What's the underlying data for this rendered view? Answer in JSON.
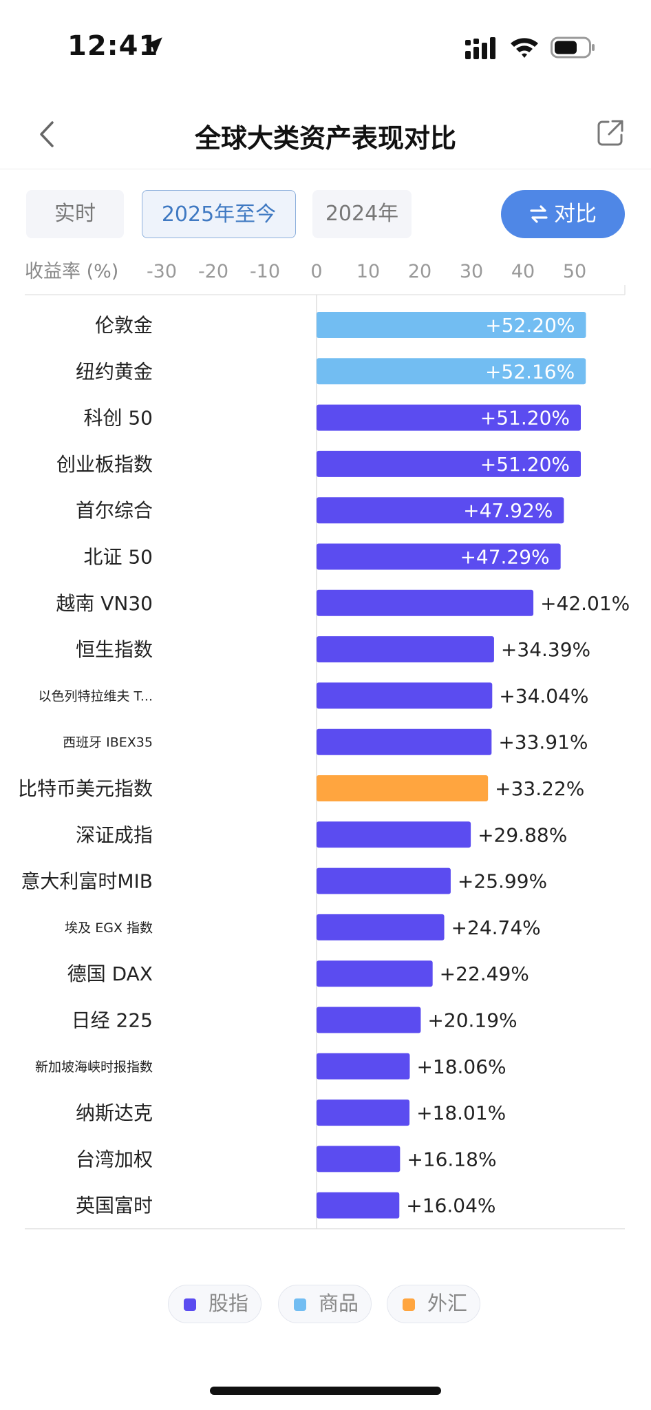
{
  "status_bar": {
    "time": "12:41",
    "icons": [
      "location-arrow-icon",
      "cellular-signal-icon",
      "wifi-icon",
      "battery-icon"
    ]
  },
  "header": {
    "title": "全球大类资产表现对比",
    "back_icon": "chevron-left-icon",
    "share_icon": "share-external-icon"
  },
  "tabs": [
    {
      "label": "实时",
      "active": false
    },
    {
      "label": "2025年至今",
      "active": true
    },
    {
      "label": "2024年",
      "active": false
    }
  ],
  "compare_button": {
    "label": "对比",
    "icon": "swap-arrows-icon"
  },
  "colors": {
    "股指": "#5b4cf0",
    "商品": "#72bdf2",
    "外汇": "#ffa53f",
    "accent": "#4f87e6"
  },
  "chart_data": {
    "type": "bar",
    "orientation": "horizontal",
    "axis_title": "收益率 (%)",
    "xlim": [
      -30,
      50
    ],
    "ticks": [
      -30,
      -20,
      -10,
      0,
      10,
      20,
      30,
      40,
      50
    ],
    "tick_labels": [
      "-30",
      "-20",
      "-10",
      "0",
      "10",
      "20",
      "30",
      "40",
      "50"
    ],
    "legend": [
      {
        "name": "股指",
        "color": "#5b4cf0"
      },
      {
        "name": "商品",
        "color": "#72bdf2"
      },
      {
        "name": "外汇",
        "color": "#ffa53f"
      }
    ],
    "items": [
      {
        "name": "伦敦金",
        "value": 52.2,
        "label": "+52.20%",
        "category": "商品"
      },
      {
        "name": "纽约黄金",
        "value": 52.16,
        "label": "+52.16%",
        "category": "商品"
      },
      {
        "name": "科创 50",
        "value": 51.2,
        "label": "+51.20%",
        "category": "股指"
      },
      {
        "name": "创业板指数",
        "value": 51.2,
        "label": "+51.20%",
        "category": "股指"
      },
      {
        "name": "首尔综合",
        "value": 47.92,
        "label": "+47.92%",
        "category": "股指"
      },
      {
        "name": "北证 50",
        "value": 47.29,
        "label": "+47.29%",
        "category": "股指"
      },
      {
        "name": "越南 VN30",
        "value": 42.01,
        "label": "+42.01%",
        "category": "股指"
      },
      {
        "name": "恒生指数",
        "value": 34.39,
        "label": "+34.39%",
        "category": "股指"
      },
      {
        "name": "以色列特拉维夫 T...",
        "value": 34.04,
        "label": "+34.04%",
        "category": "股指"
      },
      {
        "name": "西班牙 IBEX35",
        "value": 33.91,
        "label": "+33.91%",
        "category": "股指"
      },
      {
        "name": "比特币美元指数",
        "value": 33.22,
        "label": "+33.22%",
        "category": "外汇"
      },
      {
        "name": "深证成指",
        "value": 29.88,
        "label": "+29.88%",
        "category": "股指"
      },
      {
        "name": "意大利富时MIB",
        "value": 25.99,
        "label": "+25.99%",
        "category": "股指"
      },
      {
        "name": "埃及 EGX 指数",
        "value": 24.74,
        "label": "+24.74%",
        "category": "股指"
      },
      {
        "name": "德国 DAX",
        "value": 22.49,
        "label": "+22.49%",
        "category": "股指"
      },
      {
        "name": "日经 225",
        "value": 20.19,
        "label": "+20.19%",
        "category": "股指"
      },
      {
        "name": "新加坡海峡时报指数",
        "value": 18.06,
        "label": "+18.06%",
        "category": "股指"
      },
      {
        "name": "纳斯达克",
        "value": 18.01,
        "label": "+18.01%",
        "category": "股指"
      },
      {
        "name": "台湾加权",
        "value": 16.18,
        "label": "+16.18%",
        "category": "股指"
      },
      {
        "name": "英国富时",
        "value": 16.04,
        "label": "+16.04%",
        "category": "股指"
      }
    ]
  }
}
